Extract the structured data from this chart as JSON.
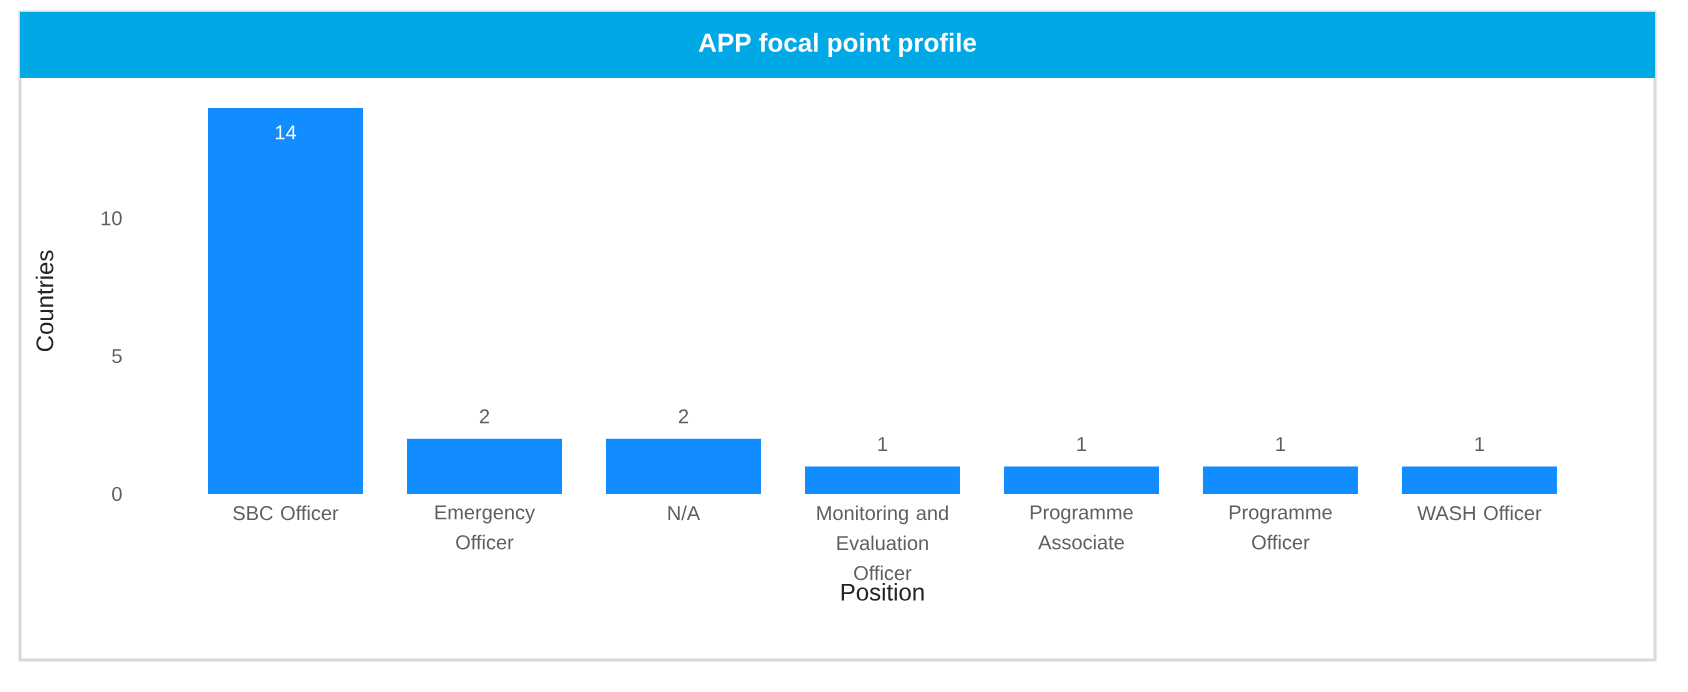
{
  "chart_data": {
    "type": "bar",
    "title": "APP focal point profile",
    "xlabel": "Position",
    "ylabel": "Countries",
    "categories": [
      "SBC Officer",
      "Emergency Officer",
      "N/A",
      "Monitoring and Evaluation Officer",
      "Programme Associate",
      "Programme Officer",
      "WASH Officer"
    ],
    "values": [
      14,
      2,
      2,
      1,
      1,
      1,
      1
    ],
    "color": "#118dff",
    "ylim": [
      0,
      14
    ],
    "yticks": [
      0,
      5,
      10
    ],
    "data_labels": true,
    "grid": false
  }
}
